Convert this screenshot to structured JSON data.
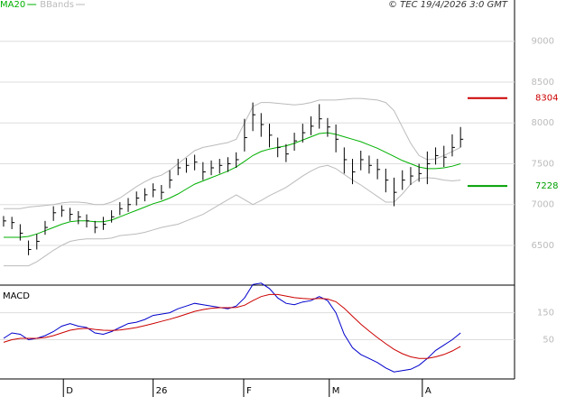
{
  "chart_data": [
    {
      "type": "ohlc",
      "source": "© TEC 19/4/2026 3:0 GMT",
      "xlim": [
        -0.43,
        61.5
      ],
      "ylim": [
        6025,
        9505
      ],
      "yticks": [
        6500,
        7000,
        7500,
        8000,
        8500,
        9000
      ],
      "grid": true,
      "bar_color": "#000000",
      "high": [
        6860,
        6850,
        6760,
        6560,
        6640,
        6800,
        6980,
        6990,
        6960,
        6920,
        6880,
        6800,
        6850,
        6930,
        7030,
        7080,
        7160,
        7200,
        7260,
        7240,
        7420,
        7560,
        7570,
        7610,
        7520,
        7540,
        7560,
        7580,
        7640,
        8050,
        8250,
        8120,
        7990,
        7820,
        7740,
        7880,
        7990,
        8080,
        8230,
        8060,
        7980,
        7700,
        7560,
        7660,
        7600,
        7560,
        7440,
        7330,
        7420,
        7460,
        7500,
        7650,
        7700,
        7720,
        7860,
        7950
      ],
      "low": [
        6730,
        6700,
        6560,
        6380,
        6450,
        6630,
        6800,
        6850,
        6800,
        6760,
        6720,
        6650,
        6690,
        6780,
        6870,
        6910,
        6990,
        7040,
        7090,
        7060,
        7200,
        7360,
        7390,
        7420,
        7300,
        7360,
        7380,
        7400,
        7450,
        7650,
        7900,
        7830,
        7700,
        7580,
        7520,
        7660,
        7760,
        7850,
        7930,
        7830,
        7640,
        7380,
        7250,
        7420,
        7380,
        7310,
        7150,
        6980,
        7180,
        7240,
        7280,
        7250,
        7490,
        7460,
        7590,
        7700
      ],
      "close": [
        6800,
        6780,
        6650,
        6450,
        6550,
        6720,
        6900,
        6930,
        6880,
        6850,
        6800,
        6720,
        6760,
        6850,
        6950,
        7000,
        7080,
        7120,
        7180,
        7150,
        7300,
        7450,
        7480,
        7520,
        7400,
        7450,
        7480,
        7500,
        7550,
        7820,
        8100,
        7980,
        7850,
        7700,
        7620,
        7780,
        7880,
        7960,
        8050,
        7950,
        7800,
        7550,
        7400,
        7550,
        7480,
        7430,
        7300,
        7150,
        7300,
        7350,
        7380,
        7500,
        7600,
        7580,
        7700,
        7800
      ],
      "series": [
        {
          "name": "MA20",
          "color": "#00b000",
          "values": [
            6600,
            6600,
            6600,
            6610,
            6640,
            6680,
            6720,
            6760,
            6790,
            6800,
            6800,
            6790,
            6790,
            6810,
            6850,
            6890,
            6930,
            6970,
            7010,
            7040,
            7080,
            7130,
            7190,
            7250,
            7290,
            7330,
            7370,
            7410,
            7460,
            7530,
            7600,
            7650,
            7680,
            7700,
            7720,
            7750,
            7790,
            7830,
            7870,
            7880,
            7860,
            7830,
            7800,
            7770,
            7730,
            7690,
            7640,
            7590,
            7540,
            7500,
            7460,
            7440,
            7440,
            7450,
            7470,
            7500
          ]
        },
        {
          "name": "BBands",
          "color": "#bbbbbb",
          "upper": [
            6950,
            6950,
            6950,
            6970,
            6980,
            6990,
            7000,
            7020,
            7030,
            7030,
            7020,
            7000,
            7000,
            7030,
            7080,
            7150,
            7220,
            7280,
            7330,
            7360,
            7420,
            7500,
            7580,
            7660,
            7700,
            7720,
            7740,
            7760,
            7800,
            8000,
            8200,
            8250,
            8250,
            8240,
            8230,
            8220,
            8230,
            8250,
            8280,
            8280,
            8280,
            8290,
            8300,
            8300,
            8290,
            8280,
            8250,
            8150,
            7950,
            7750,
            7600,
            7550,
            7560,
            7600,
            7650,
            7700
          ],
          "lower": [
            6250,
            6250,
            6250,
            6250,
            6300,
            6370,
            6440,
            6500,
            6550,
            6570,
            6580,
            6580,
            6580,
            6590,
            6620,
            6630,
            6640,
            6660,
            6690,
            6720,
            6740,
            6760,
            6800,
            6840,
            6880,
            6940,
            7000,
            7060,
            7120,
            7060,
            7000,
            7050,
            7110,
            7160,
            7210,
            7280,
            7350,
            7410,
            7460,
            7480,
            7440,
            7370,
            7300,
            7240,
            7170,
            7100,
            7030,
            7030,
            7130,
            7250,
            7320,
            7330,
            7320,
            7300,
            7290,
            7300
          ]
        }
      ],
      "levels": [
        {
          "value": 8304,
          "color": "#cc0000"
        },
        {
          "value": 7228,
          "color": "#00a000"
        }
      ]
    },
    {
      "type": "line",
      "title": "MACD",
      "xlim": [
        -0.43,
        61.5
      ],
      "ylim": [
        -96,
        246
      ],
      "yticks": [
        50,
        150
      ],
      "grid": true,
      "xticks": [
        {
          "value": 7.2,
          "label": "D"
        },
        {
          "value": 18,
          "label": "26"
        },
        {
          "value": 28.9,
          "label": "F"
        },
        {
          "value": 39.2,
          "label": "M"
        },
        {
          "value": 50.4,
          "label": "A"
        }
      ],
      "series": [
        {
          "color": "#0000cc",
          "values": [
            55,
            75,
            70,
            50,
            55,
            65,
            80,
            100,
            110,
            100,
            95,
            75,
            70,
            80,
            95,
            110,
            115,
            125,
            140,
            145,
            150,
            165,
            175,
            185,
            180,
            175,
            170,
            165,
            175,
            205,
            255,
            260,
            240,
            205,
            185,
            180,
            190,
            195,
            210,
            195,
            150,
            70,
            20,
            -5,
            -20,
            -35,
            -55,
            -70,
            -65,
            -60,
            -45,
            -20,
            10,
            30,
            50,
            75
          ]
        },
        {
          "color": "#cc0000",
          "values": [
            40,
            50,
            55,
            55,
            55,
            58,
            65,
            75,
            85,
            90,
            92,
            88,
            85,
            84,
            86,
            90,
            95,
            102,
            110,
            118,
            126,
            135,
            145,
            155,
            162,
            167,
            169,
            169,
            170,
            178,
            195,
            210,
            218,
            218,
            212,
            206,
            203,
            201,
            203,
            201,
            191,
            167,
            137,
            108,
            82,
            58,
            35,
            14,
            -2,
            -14,
            -20,
            -20,
            -14,
            -5,
            8,
            25
          ]
        }
      ]
    }
  ]
}
